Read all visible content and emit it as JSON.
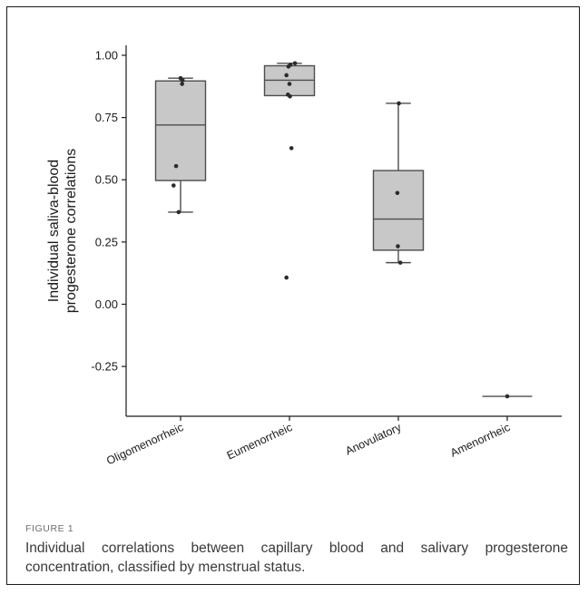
{
  "figure": {
    "label": "FIGURE 1",
    "caption": "Individual correlations between capillary blood and salivary progesterone concentration, classified by menstrual status."
  },
  "chart_data": {
    "type": "box",
    "title": "",
    "xlabel": "",
    "ylabel": "Individual saliva-blood progesterone correlations",
    "ylim": [
      -0.45,
      1.04
    ],
    "yticks": [
      1.0,
      0.75,
      0.5,
      0.25,
      0.0,
      -0.25
    ],
    "ytick_labels": [
      "1.00",
      "0.75",
      "0.50",
      "0.25",
      "0.00",
      "-0.25"
    ],
    "grid": false,
    "colors": {
      "box_fill": "#c8c8c8",
      "box_stroke": "#4d4d4d",
      "point": "#2b2b2b"
    },
    "categories": [
      "Oligomenorrheic",
      "Eumenorrheic",
      "Anovulatory",
      "Amenorrheic"
    ],
    "boxes": [
      {
        "category": "Oligomenorrheic",
        "min": 0.37,
        "q1": 0.497,
        "median": 0.72,
        "q3": 0.897,
        "max": 0.908
      },
      {
        "category": "Eumenorrheic",
        "min": 0.838,
        "q1": 0.838,
        "median": 0.9,
        "q3": 0.958,
        "max": 0.968
      },
      {
        "category": "Anovulatory",
        "min": 0.167,
        "q1": 0.217,
        "median": 0.342,
        "q3": 0.537,
        "max": 0.807
      },
      {
        "category": "Amenorrheic",
        "min": -0.37,
        "q1": -0.37,
        "median": -0.37,
        "q3": -0.37,
        "max": -0.37
      }
    ],
    "points": [
      {
        "category": "Oligomenorrheic",
        "values": [
          0.908,
          0.9,
          0.885,
          0.555,
          0.477,
          0.37
        ],
        "jitter": [
          0.0,
          0.04,
          0.03,
          -0.09,
          -0.14,
          -0.04
        ]
      },
      {
        "category": "Eumenorrheic",
        "values": [
          0.968,
          0.962,
          0.955,
          0.92,
          0.885,
          0.842,
          0.835,
          0.627,
          0.107
        ],
        "jitter": [
          0.11,
          0.02,
          -0.02,
          -0.06,
          0.0,
          -0.03,
          0.01,
          0.04,
          -0.06
        ]
      },
      {
        "category": "Anovulatory",
        "values": [
          0.807,
          0.447,
          0.233,
          0.167
        ],
        "jitter": [
          0.01,
          -0.02,
          -0.01,
          0.04
        ]
      },
      {
        "category": "Amenorrheic",
        "values": [
          -0.37
        ],
        "jitter": [
          0.0
        ]
      }
    ]
  }
}
